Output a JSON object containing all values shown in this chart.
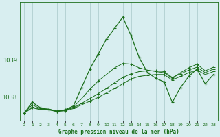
{
  "title": "Graphe pression niveau de la mer (hPa)",
  "bg_color": "#d8eef0",
  "line_color": "#1a6e1a",
  "grid_color": "#a8c8c8",
  "hours": [
    0,
    1,
    2,
    3,
    4,
    5,
    6,
    7,
    8,
    9,
    10,
    11,
    12,
    13,
    14,
    15,
    16,
    17,
    18,
    19,
    20,
    21,
    22,
    23
  ],
  "pressure_main": [
    1037.55,
    1037.85,
    1037.7,
    1037.65,
    1037.6,
    1037.65,
    1037.75,
    1038.25,
    1038.75,
    1039.15,
    1039.55,
    1039.85,
    1040.15,
    1039.65,
    1039.05,
    1038.65,
    1038.5,
    1038.4,
    1037.85,
    1038.25,
    1038.55,
    1038.75,
    1038.35,
    1038.6
  ],
  "pressure_line2": [
    1037.55,
    1037.7,
    1037.65,
    1037.65,
    1037.6,
    1037.62,
    1037.68,
    1037.78,
    1037.88,
    1037.98,
    1038.1,
    1038.22,
    1038.35,
    1038.48,
    1038.55,
    1038.58,
    1038.6,
    1038.6,
    1038.45,
    1038.55,
    1038.65,
    1038.72,
    1038.6,
    1038.68
  ],
  "pressure_line3": [
    1037.55,
    1037.72,
    1037.66,
    1037.66,
    1037.62,
    1037.64,
    1037.7,
    1037.82,
    1037.95,
    1038.08,
    1038.22,
    1038.38,
    1038.52,
    1038.62,
    1038.68,
    1038.7,
    1038.7,
    1038.68,
    1038.52,
    1038.62,
    1038.72,
    1038.8,
    1038.65,
    1038.75
  ],
  "pressure_line4": [
    1037.55,
    1037.78,
    1037.68,
    1037.67,
    1037.61,
    1037.63,
    1037.72,
    1037.95,
    1038.2,
    1038.42,
    1038.6,
    1038.78,
    1038.9,
    1038.88,
    1038.78,
    1038.72,
    1038.68,
    1038.65,
    1038.5,
    1038.65,
    1038.78,
    1038.88,
    1038.7,
    1038.8
  ],
  "yticks": [
    1038,
    1039
  ],
  "ylim": [
    1037.35,
    1040.55
  ],
  "xlim": [
    -0.5,
    23.5
  ]
}
